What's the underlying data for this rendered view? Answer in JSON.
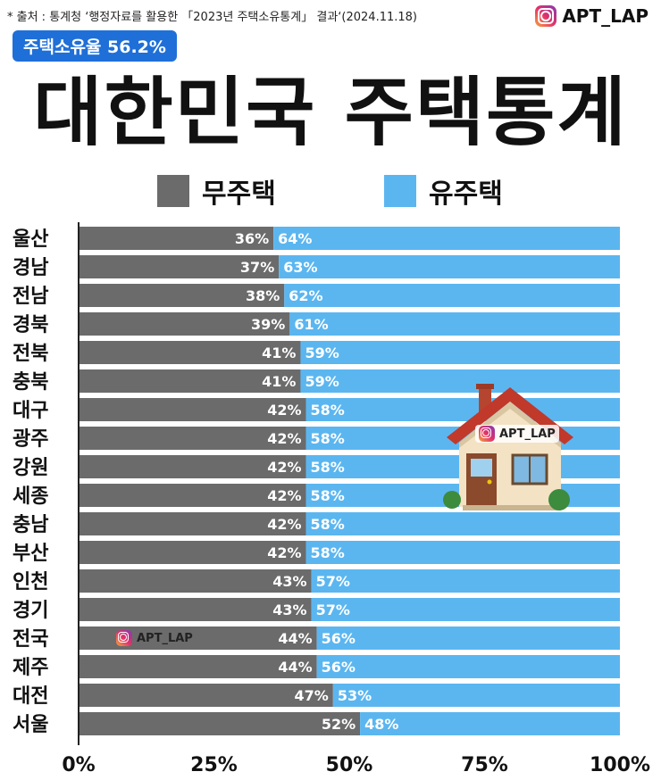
{
  "source": "* 출처 : 통계청 ‘행정자료를 활용한 「2023년 주택소유통계」 결과‘(2024.11.18)",
  "brand": {
    "handle": "APT_LAP",
    "icon": "instagram-icon"
  },
  "badge": "주택소유율 56.2%",
  "title": "대한민국 주택통계",
  "colors": {
    "no_home": "#6b6b6b",
    "own_home": "#5bb6f0",
    "badge": "#1f6fd8"
  },
  "chart_data": {
    "type": "bar",
    "orientation": "horizontal",
    "stacked": true,
    "categories": [
      "울산",
      "경남",
      "전남",
      "경북",
      "전북",
      "충북",
      "대구",
      "광주",
      "강원",
      "세종",
      "충남",
      "부산",
      "인천",
      "경기",
      "전국",
      "제주",
      "대전",
      "서울"
    ],
    "series": [
      {
        "name": "무주택",
        "values": [
          36,
          37,
          38,
          39,
          41,
          41,
          42,
          42,
          42,
          42,
          42,
          42,
          43,
          43,
          44,
          44,
          47,
          52
        ]
      },
      {
        "name": "유주택",
        "values": [
          64,
          63,
          62,
          61,
          59,
          59,
          58,
          58,
          58,
          58,
          58,
          58,
          57,
          57,
          56,
          56,
          53,
          48
        ]
      }
    ],
    "xlim": [
      0,
      100
    ],
    "x_ticks": [
      "0%",
      "25%",
      "50%",
      "75%",
      "100%"
    ],
    "value_suffix": "%",
    "legend": "top-center"
  }
}
